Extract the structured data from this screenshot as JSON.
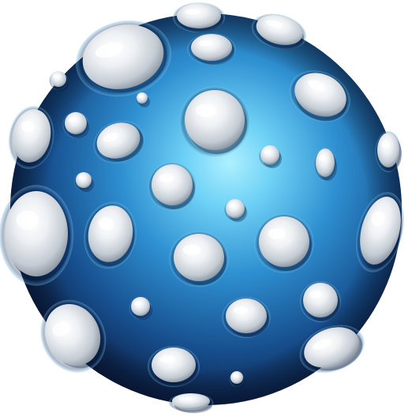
{
  "asset": {
    "icon": "bumpy-sphere-icon",
    "colors": {
      "background": "#ffffff",
      "sphere_core": "#8fe3ff",
      "sphere_mid": "#2e8fd0",
      "sphere_edge": "#0c1f45",
      "bump_light": "#ffffff",
      "bump_mid": "#d6dce2",
      "bump_shadow": "#7d8791"
    }
  }
}
